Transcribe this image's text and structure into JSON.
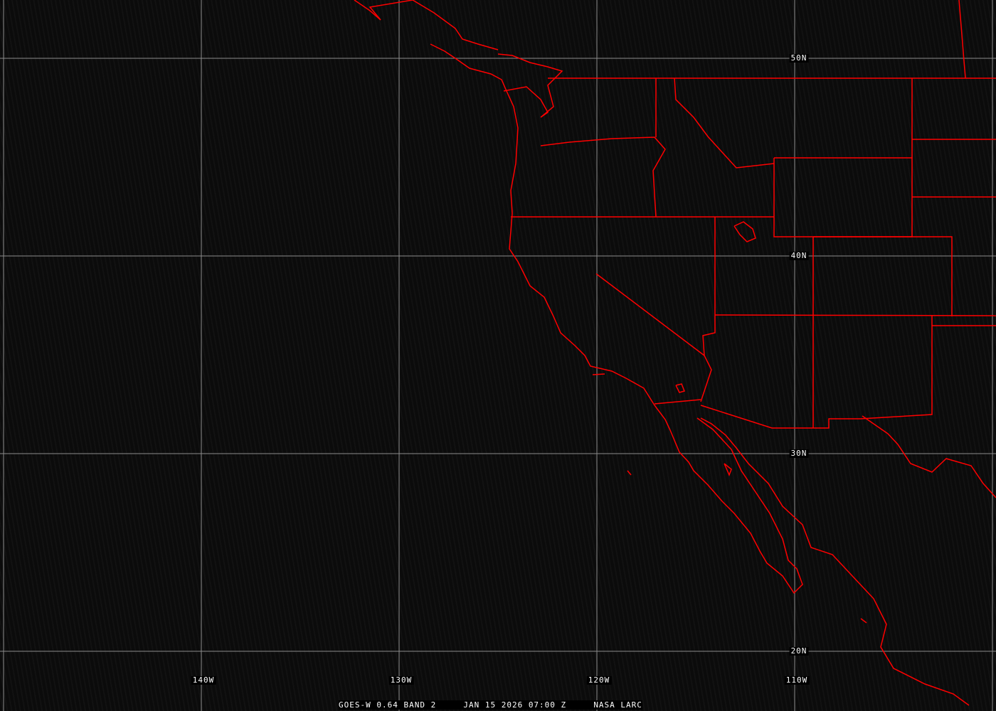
{
  "map": {
    "projection": "cylindrical equidistant",
    "grid_color": "#8c8c8c",
    "border_color": "#ff0000",
    "background": "#0b0b0b",
    "latitude_labels": [
      "50N",
      "40N",
      "30N",
      "20N"
    ],
    "longitude_labels": [
      "140W",
      "130W",
      "120W",
      "110W"
    ],
    "caption": {
      "satellite": "GOES-W 0.64 BAND 2",
      "datetime": "JAN 15 2026 07:00 Z",
      "source": "NASA LARC"
    }
  }
}
